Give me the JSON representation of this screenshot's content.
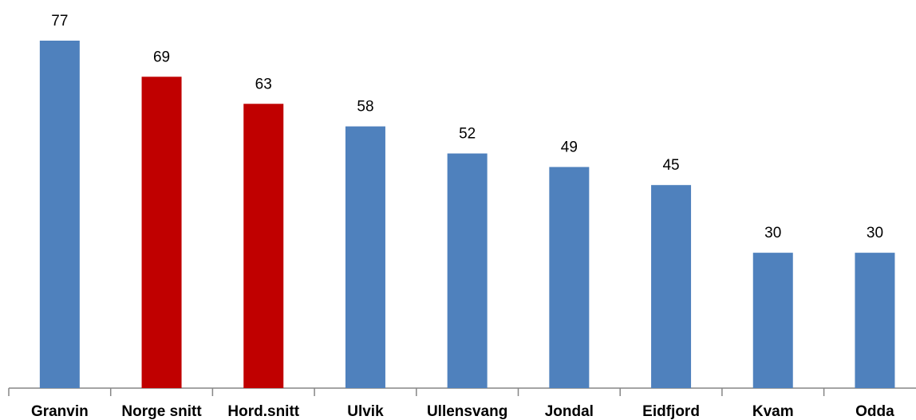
{
  "chart_data": {
    "type": "bar",
    "categories": [
      "Granvin",
      "Norge snitt",
      "Hord.snitt",
      "Ulvik",
      "Ullensvang",
      "Jondal",
      "Eidfjord",
      "Kvam",
      "Odda"
    ],
    "values": [
      77,
      69,
      63,
      58,
      52,
      49,
      45,
      30,
      30
    ],
    "colors": [
      "#4f81bd",
      "#c00000",
      "#c00000",
      "#4f81bd",
      "#4f81bd",
      "#4f81bd",
      "#4f81bd",
      "#4f81bd",
      "#4f81bd"
    ]
  }
}
